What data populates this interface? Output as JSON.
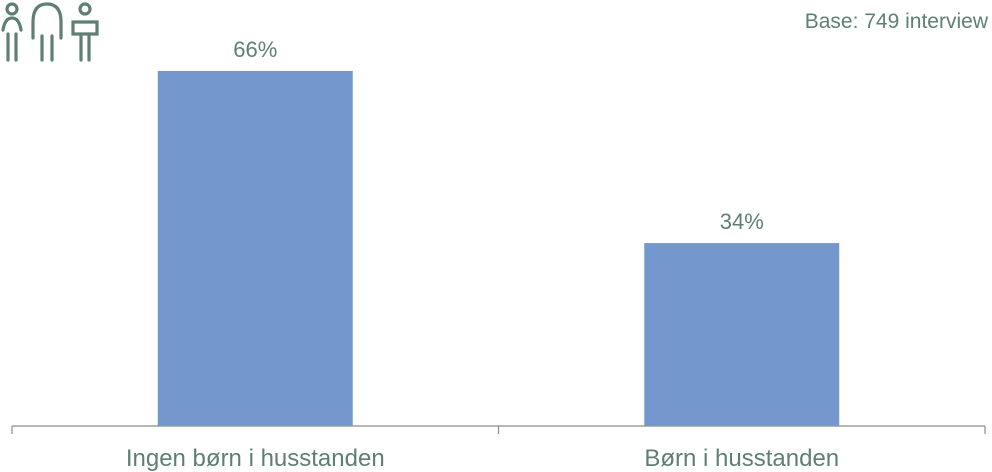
{
  "icon": "family-icon",
  "base_note": "Base: 749 interview",
  "colors": {
    "bar": "#7497cd",
    "text": "#5f7f74",
    "axis": "#8c8c8c",
    "icon": "#5f7f74"
  },
  "chart_data": {
    "type": "bar",
    "categories": [
      "Ingen børn i husstanden",
      "Børn i husstanden"
    ],
    "values": [
      66,
      34
    ],
    "data_labels": [
      "66%",
      "34%"
    ],
    "ylim": [
      0,
      70
    ],
    "grid": false,
    "legend": "none"
  }
}
